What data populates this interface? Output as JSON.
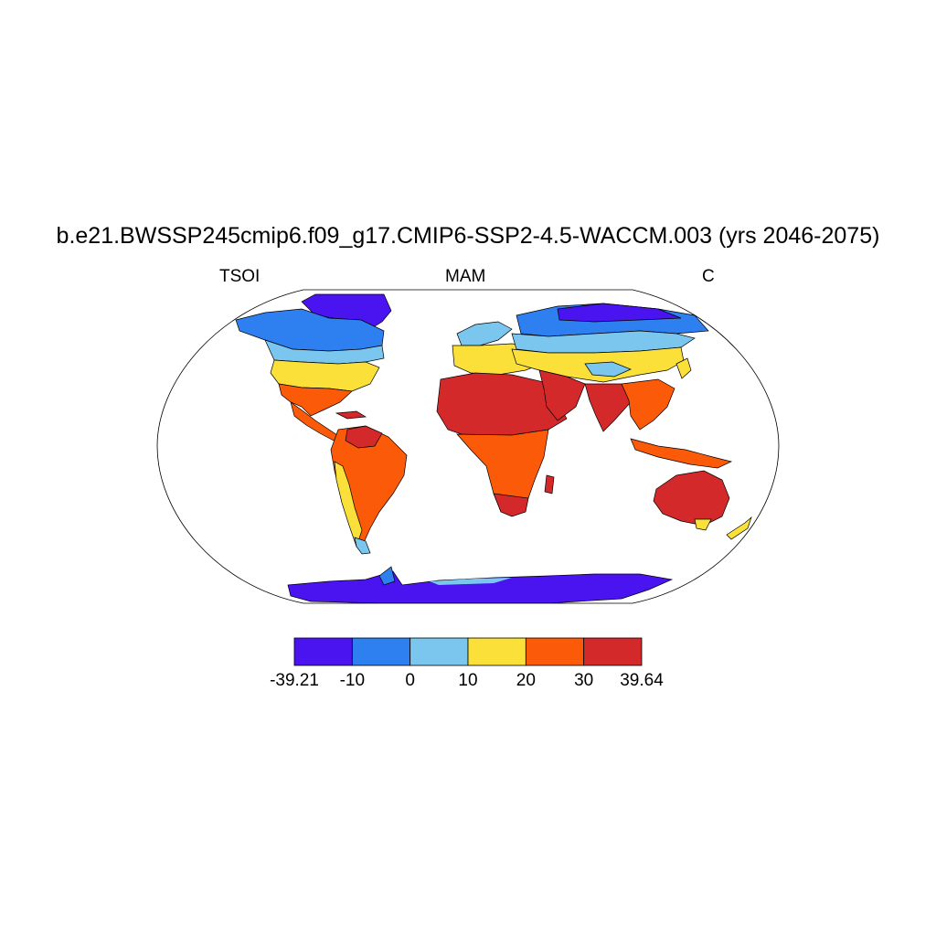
{
  "title": "b.e21.BWSSP245cmip6.f09_g17.CMIP6-SSP2-4.5-WACCM.003 (yrs 2046-2075)",
  "left_label": "TSOI",
  "center_label": "MAM",
  "right_label": "C",
  "colorbar": {
    "bins": [
      {
        "color": "#4a14f0"
      },
      {
        "color": "#2e7ff0"
      },
      {
        "color": "#7ac6ee"
      },
      {
        "color": "#fbe03a"
      },
      {
        "color": "#fb5a08"
      },
      {
        "color": "#d3292b"
      }
    ],
    "tick_labels": [
      "-39.21",
      "-10",
      "0",
      "10",
      "20",
      "30",
      "39.64"
    ]
  },
  "map": {
    "projection": "robinson",
    "ocean_color": "#ffffff",
    "outline_color": "#000000"
  }
}
